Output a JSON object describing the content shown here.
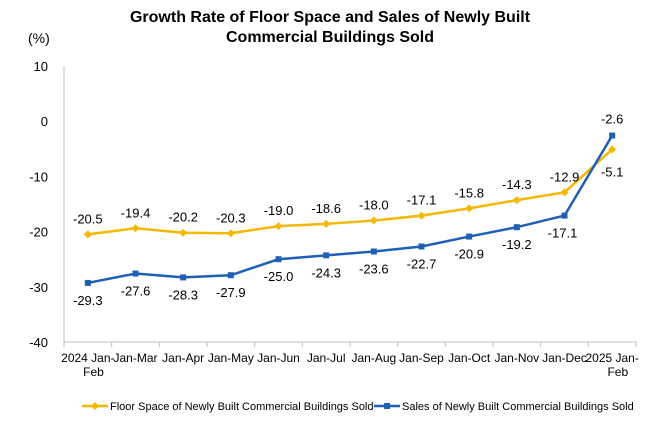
{
  "chart_data": {
    "type": "line",
    "title_line1": "Growth Rate of Floor Space and Sales of Newly Built",
    "title_line2": "Commercial Buildings Sold",
    "unit_label": "(%)",
    "categories": [
      [
        "2024 Jan-",
        "Feb"
      ],
      [
        "Jan-Mar"
      ],
      [
        "Jan-Apr"
      ],
      [
        "Jan-May"
      ],
      [
        "Jan-Jun"
      ],
      [
        "Jan-Jul"
      ],
      [
        "Jan-Aug"
      ],
      [
        "Jan-Sep"
      ],
      [
        "Jan-Oct"
      ],
      [
        "Jan-Nov"
      ],
      [
        "Jan-Dec"
      ],
      [
        "2025 Jan-",
        "Feb"
      ]
    ],
    "ylim": [
      -40,
      10
    ],
    "yticks": [
      10,
      0,
      -10,
      -20,
      -30,
      -40
    ],
    "grid": false,
    "legend_position": "bottom",
    "series": [
      {
        "name": "Floor Space of Newly Built Commercial Buildings Sold",
        "color": "#F5B800",
        "marker": "diamond",
        "values": [
          -20.5,
          -19.4,
          -20.2,
          -20.3,
          -19.0,
          -18.6,
          -18.0,
          -17.1,
          -15.8,
          -14.3,
          -12.9,
          -5.1
        ],
        "labels": [
          "-20.5",
          "-19.4",
          "-20.2",
          "-20.3",
          "-19.0",
          "-18.6",
          "-18.0",
          "-17.1",
          "-15.8",
          "-14.3",
          "-12.9",
          "-5.1"
        ]
      },
      {
        "name": "Sales of Newly Built Commercial Buildings Sold",
        "color": "#1F5FB5",
        "marker": "square",
        "values": [
          -29.3,
          -27.6,
          -28.3,
          -27.9,
          -25.0,
          -24.3,
          -23.6,
          -22.7,
          -20.9,
          -19.2,
          -17.1,
          -2.6
        ],
        "labels": [
          "-29.3",
          "-27.6",
          "-28.3",
          "-27.9",
          "-25.0",
          "-24.3",
          "-23.6",
          "-22.7",
          "-20.9",
          "-19.2",
          "-17.1",
          "-2.6"
        ]
      }
    ]
  }
}
